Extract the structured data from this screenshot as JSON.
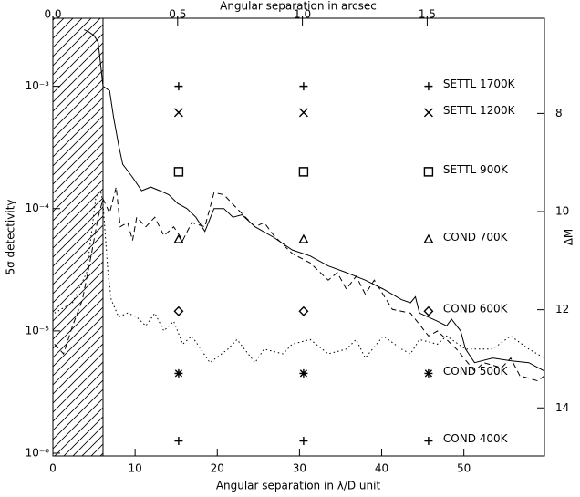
{
  "chart_data": {
    "type": "line",
    "xlabel": "Angular separation in λ/D unit",
    "x2label": "Angular separation in arcsec",
    "ylabel": "5σ detectivity",
    "y2label": "ΔM",
    "xlim": [
      0,
      59.8
    ],
    "xticks": [
      0,
      10,
      20,
      30,
      40,
      50
    ],
    "x2lim": [
      0,
      1.97
    ],
    "x2ticks": [
      {
        "value": 0,
        "label": "0.0"
      },
      0.5,
      {
        "value": 1,
        "label": "1.0"
      },
      1.5
    ],
    "ylim": [
      9.5e-07,
      0.0036
    ],
    "log_y": true,
    "yticks": [
      {
        "value": 0.001,
        "label": "10⁻³"
      },
      {
        "value": 0.0001,
        "label": "10⁻⁴"
      },
      {
        "value": 1e-05,
        "label": "10⁻⁵"
      },
      {
        "value": 1e-06,
        "label": "10⁻⁶"
      }
    ],
    "y2lim": [
      14.98,
      6.06
    ],
    "y2ticks": [
      8,
      10,
      12,
      14
    ],
    "excluded_region": [
      0,
      6.1
    ],
    "series": [
      {
        "color": "#000000",
        "dash": "solid",
        "x": [
          3.8,
          4.3,
          5.0,
          5.5,
          6.1,
          6.9,
          7.4,
          8.0,
          8.5,
          9.7,
          10.8,
          11.9,
          13.0,
          14.1,
          15.2,
          16.3,
          17.4,
          18.5,
          19.6,
          20.8,
          21.9,
          23.0,
          24.6,
          26.9,
          29.1,
          31.3,
          33.5,
          35.7,
          38.0,
          40.2,
          42.4,
          43.5,
          44.1,
          44.6,
          46.8,
          47.9,
          48.5,
          49.6,
          50.2,
          51.3,
          53.5,
          55.7,
          57.9,
          59.8
        ],
        "values": [
          0.0029,
          0.0028,
          0.0026,
          0.0023,
          0.001,
          0.00092,
          0.00055,
          0.00033,
          0.00023,
          0.00018,
          0.00014,
          0.00015,
          0.00014,
          0.00013,
          0.00011,
          0.0001,
          8.5e-05,
          6.5e-05,
          0.0001,
          0.0001,
          8.5e-05,
          8.9e-05,
          7.1e-05,
          5.8e-05,
          4.6e-05,
          4.1e-05,
          3.4e-05,
          3e-05,
          2.6e-05,
          2.2e-05,
          1.8e-05,
          1.7e-05,
          1.9e-05,
          1.4e-05,
          1.2e-05,
          1.1e-05,
          1.25e-05,
          1e-05,
          7.1e-06,
          5.5e-06,
          6e-06,
          5.7e-06,
          5.5e-06,
          4.7e-06
        ]
      },
      {
        "color": "#000000",
        "dash": "dashed",
        "x": [
          0.2,
          1.3,
          2.4,
          3.6,
          4.7,
          5.5,
          6.1,
          6.9,
          7.7,
          8.2,
          9.1,
          9.7,
          10.2,
          11.3,
          12.4,
          13.5,
          14.7,
          15.8,
          16.9,
          18.5,
          19.6,
          20.8,
          22.4,
          24.6,
          25.7,
          26.9,
          29.1,
          31.3,
          33.5,
          34.6,
          35.7,
          36.9,
          38.0,
          39.1,
          41.3,
          43.5,
          45.7,
          46.8,
          49.1,
          51.3,
          52.4,
          54.6,
          55.7,
          56.8,
          59.0,
          59.8
        ],
        "values": [
          7.8e-06,
          6.5e-06,
          1.1e-05,
          1.8e-05,
          4.3e-05,
          8.5e-05,
          0.00012,
          9.2e-05,
          0.00015,
          7.1e-05,
          7.7e-05,
          5.5e-05,
          8.5e-05,
          7.1e-05,
          8.5e-05,
          6e-05,
          7.1e-05,
          5.5e-05,
          7.7e-05,
          7.1e-05,
          0.000135,
          0.00013,
          0.0001,
          7.1e-05,
          7.7e-05,
          6e-05,
          4.3e-05,
          3.6e-05,
          2.6e-05,
          3e-05,
          2.2e-05,
          2.8e-05,
          2e-05,
          2.6e-05,
          1.5e-05,
          1.4e-05,
          9.1e-06,
          1e-05,
          7.1e-06,
          4.7e-06,
          5.5e-06,
          5e-06,
          6e-06,
          4.3e-06,
          3.9e-06,
          4.3e-06
        ]
      },
      {
        "color": "#000000",
        "dash": "dotted",
        "x": [
          0.2,
          2.4,
          4.1,
          5.2,
          5.8,
          6.1,
          6.7,
          7.1,
          8.0,
          9.1,
          10.2,
          11.3,
          12.4,
          13.5,
          14.7,
          15.8,
          16.9,
          18.0,
          19.1,
          21.3,
          22.4,
          24.6,
          25.7,
          28.0,
          29.1,
          31.3,
          33.5,
          35.7,
          36.9,
          38.0,
          40.2,
          42.4,
          43.5,
          44.6,
          46.8,
          47.9,
          50.2,
          53.5,
          55.7,
          57.9,
          59.8
        ],
        "values": [
          1.4e-05,
          1.7e-05,
          3e-05,
          0.00012,
          0.00014,
          0.00011,
          3e-05,
          1.8e-05,
          1.3e-05,
          1.4e-05,
          1.3e-05,
          1.1e-05,
          1.4e-05,
          1e-05,
          1.2e-05,
          7.8e-06,
          9.1e-06,
          7.1e-06,
          5.5e-06,
          7.1e-06,
          8.5e-06,
          5.5e-06,
          7.1e-06,
          6.5e-06,
          7.8e-06,
          8.5e-06,
          6.5e-06,
          7.1e-06,
          8.5e-06,
          6e-06,
          9.1e-06,
          7.1e-06,
          6.5e-06,
          8.5e-06,
          7.8e-06,
          9.1e-06,
          7.1e-06,
          7.1e-06,
          9.1e-06,
          7.1e-06,
          6e-06
        ]
      }
    ],
    "model_x": [
      15.3,
      30.5,
      45.7
    ],
    "models": [
      {
        "name": "SETTL 1700K",
        "symbol": "plus",
        "value": 0.001
      },
      {
        "name": "SETTL 1200K",
        "symbol": "cross",
        "value": 0.00061
      },
      {
        "name": "SETTL 900K",
        "symbol": "square",
        "value": 0.0002
      },
      {
        "name": "COND 700K",
        "symbol": "triangle",
        "value": 5.6e-05
      },
      {
        "name": "COND 600K",
        "symbol": "diamond",
        "value": 1.45e-05
      },
      {
        "name": "COND 500K",
        "symbol": "asterisk",
        "value": 4.5e-06
      },
      {
        "name": "COND 400K",
        "symbol": "plus",
        "value": 1.26e-06
      }
    ]
  }
}
